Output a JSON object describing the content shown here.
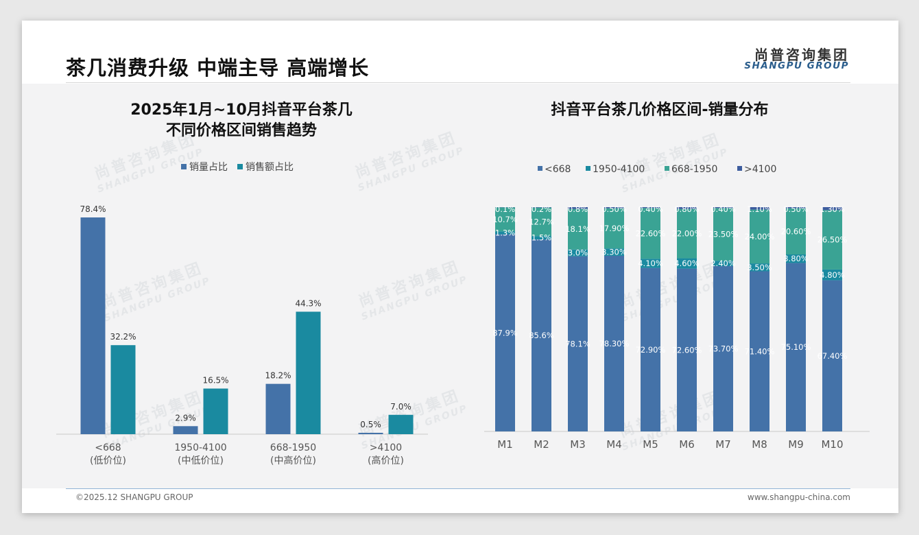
{
  "page": {
    "title": "茶几消费升级 中端主导 高端增长",
    "logo_cn": "尚普咨询集团",
    "logo_en": "SHANGPU GROUP",
    "footer_left": "©2025.12 SHANGPU GROUP",
    "footer_right": "www.shangpu-china.com",
    "watermark_cn": "尚普咨询集团",
    "watermark_en": "SHANGPU GROUP"
  },
  "chart_data": [
    {
      "type": "bar",
      "title_line1": "2025年1月~10月抖音平台茶几",
      "title_line2": "不同价格区间销售趋势",
      "categories": [
        "<668",
        "1950-4100",
        "668-1950",
        ">4100"
      ],
      "category_sublabels": [
        "(低价位)",
        "(中低价位)",
        "(中高价位)",
        "(高价位)"
      ],
      "series": [
        {
          "name": "销量占比",
          "values": [
            78.4,
            2.9,
            18.2,
            0.5
          ],
          "labels": [
            "78.4%",
            "2.9%",
            "18.2%",
            "0.5%"
          ],
          "color": "#4472a8"
        },
        {
          "name": "销售额占比",
          "values": [
            32.2,
            16.5,
            44.3,
            7.0
          ],
          "labels": [
            "32.2%",
            "16.5%",
            "44.3%",
            "7.0%"
          ],
          "color": "#1a8aa0"
        }
      ],
      "ylim": [
        0,
        80
      ],
      "legend": "top-center"
    },
    {
      "type": "bar",
      "stacked": true,
      "title": "抖音平台茶几价格区间-销量分布",
      "categories": [
        "M1",
        "M2",
        "M3",
        "M4",
        "M5",
        "M6",
        "M7",
        "M8",
        "M9",
        "M10"
      ],
      "series": [
        {
          "name": "<668",
          "color": "#4472a8",
          "values": [
            87.9,
            85.6,
            78.1,
            78.3,
            72.9,
            72.6,
            73.7,
            71.4,
            75.1,
            67.4
          ],
          "labels": [
            "87.9%",
            "85.6%",
            "78.1%",
            "78.30%",
            "72.90%",
            "72.60%",
            "73.70%",
            "71.40%",
            "75.10%",
            "67.40%"
          ]
        },
        {
          "name": "1950-4100",
          "color": "#1a8aa0",
          "values": [
            1.3,
            1.5,
            3.0,
            3.3,
            4.1,
            4.6,
            2.4,
            3.5,
            3.8,
            4.8
          ],
          "labels": [
            "1.3%",
            "1.5%",
            "3.0%",
            "3.30%",
            "4.10%",
            "4.60%",
            "2.40%",
            "3.50%",
            "3.80%",
            "4.80%"
          ]
        },
        {
          "name": "668-1950",
          "color": "#3aa394",
          "values": [
            10.7,
            12.7,
            18.1,
            17.9,
            22.6,
            22.0,
            23.5,
            24.0,
            20.6,
            26.5
          ],
          "labels": [
            "10.7%",
            "12.7%",
            "18.1%",
            "17.90%",
            "22.60%",
            "22.00%",
            "23.50%",
            "24.00%",
            "20.60%",
            "26.50%"
          ]
        },
        {
          "name": ">4100",
          "color": "#3d5c9e",
          "values": [
            0.1,
            0.2,
            0.8,
            0.5,
            0.4,
            0.8,
            0.4,
            1.1,
            0.5,
            1.3
          ],
          "labels": [
            "0.1%",
            "0.2%",
            "0.8%",
            "0.50%",
            "0.40%",
            "0.80%",
            "0.40%",
            "1.10%",
            "0.50%",
            "1.30%"
          ]
        }
      ],
      "ylim": [
        0,
        100
      ],
      "legend": "top-center"
    }
  ]
}
